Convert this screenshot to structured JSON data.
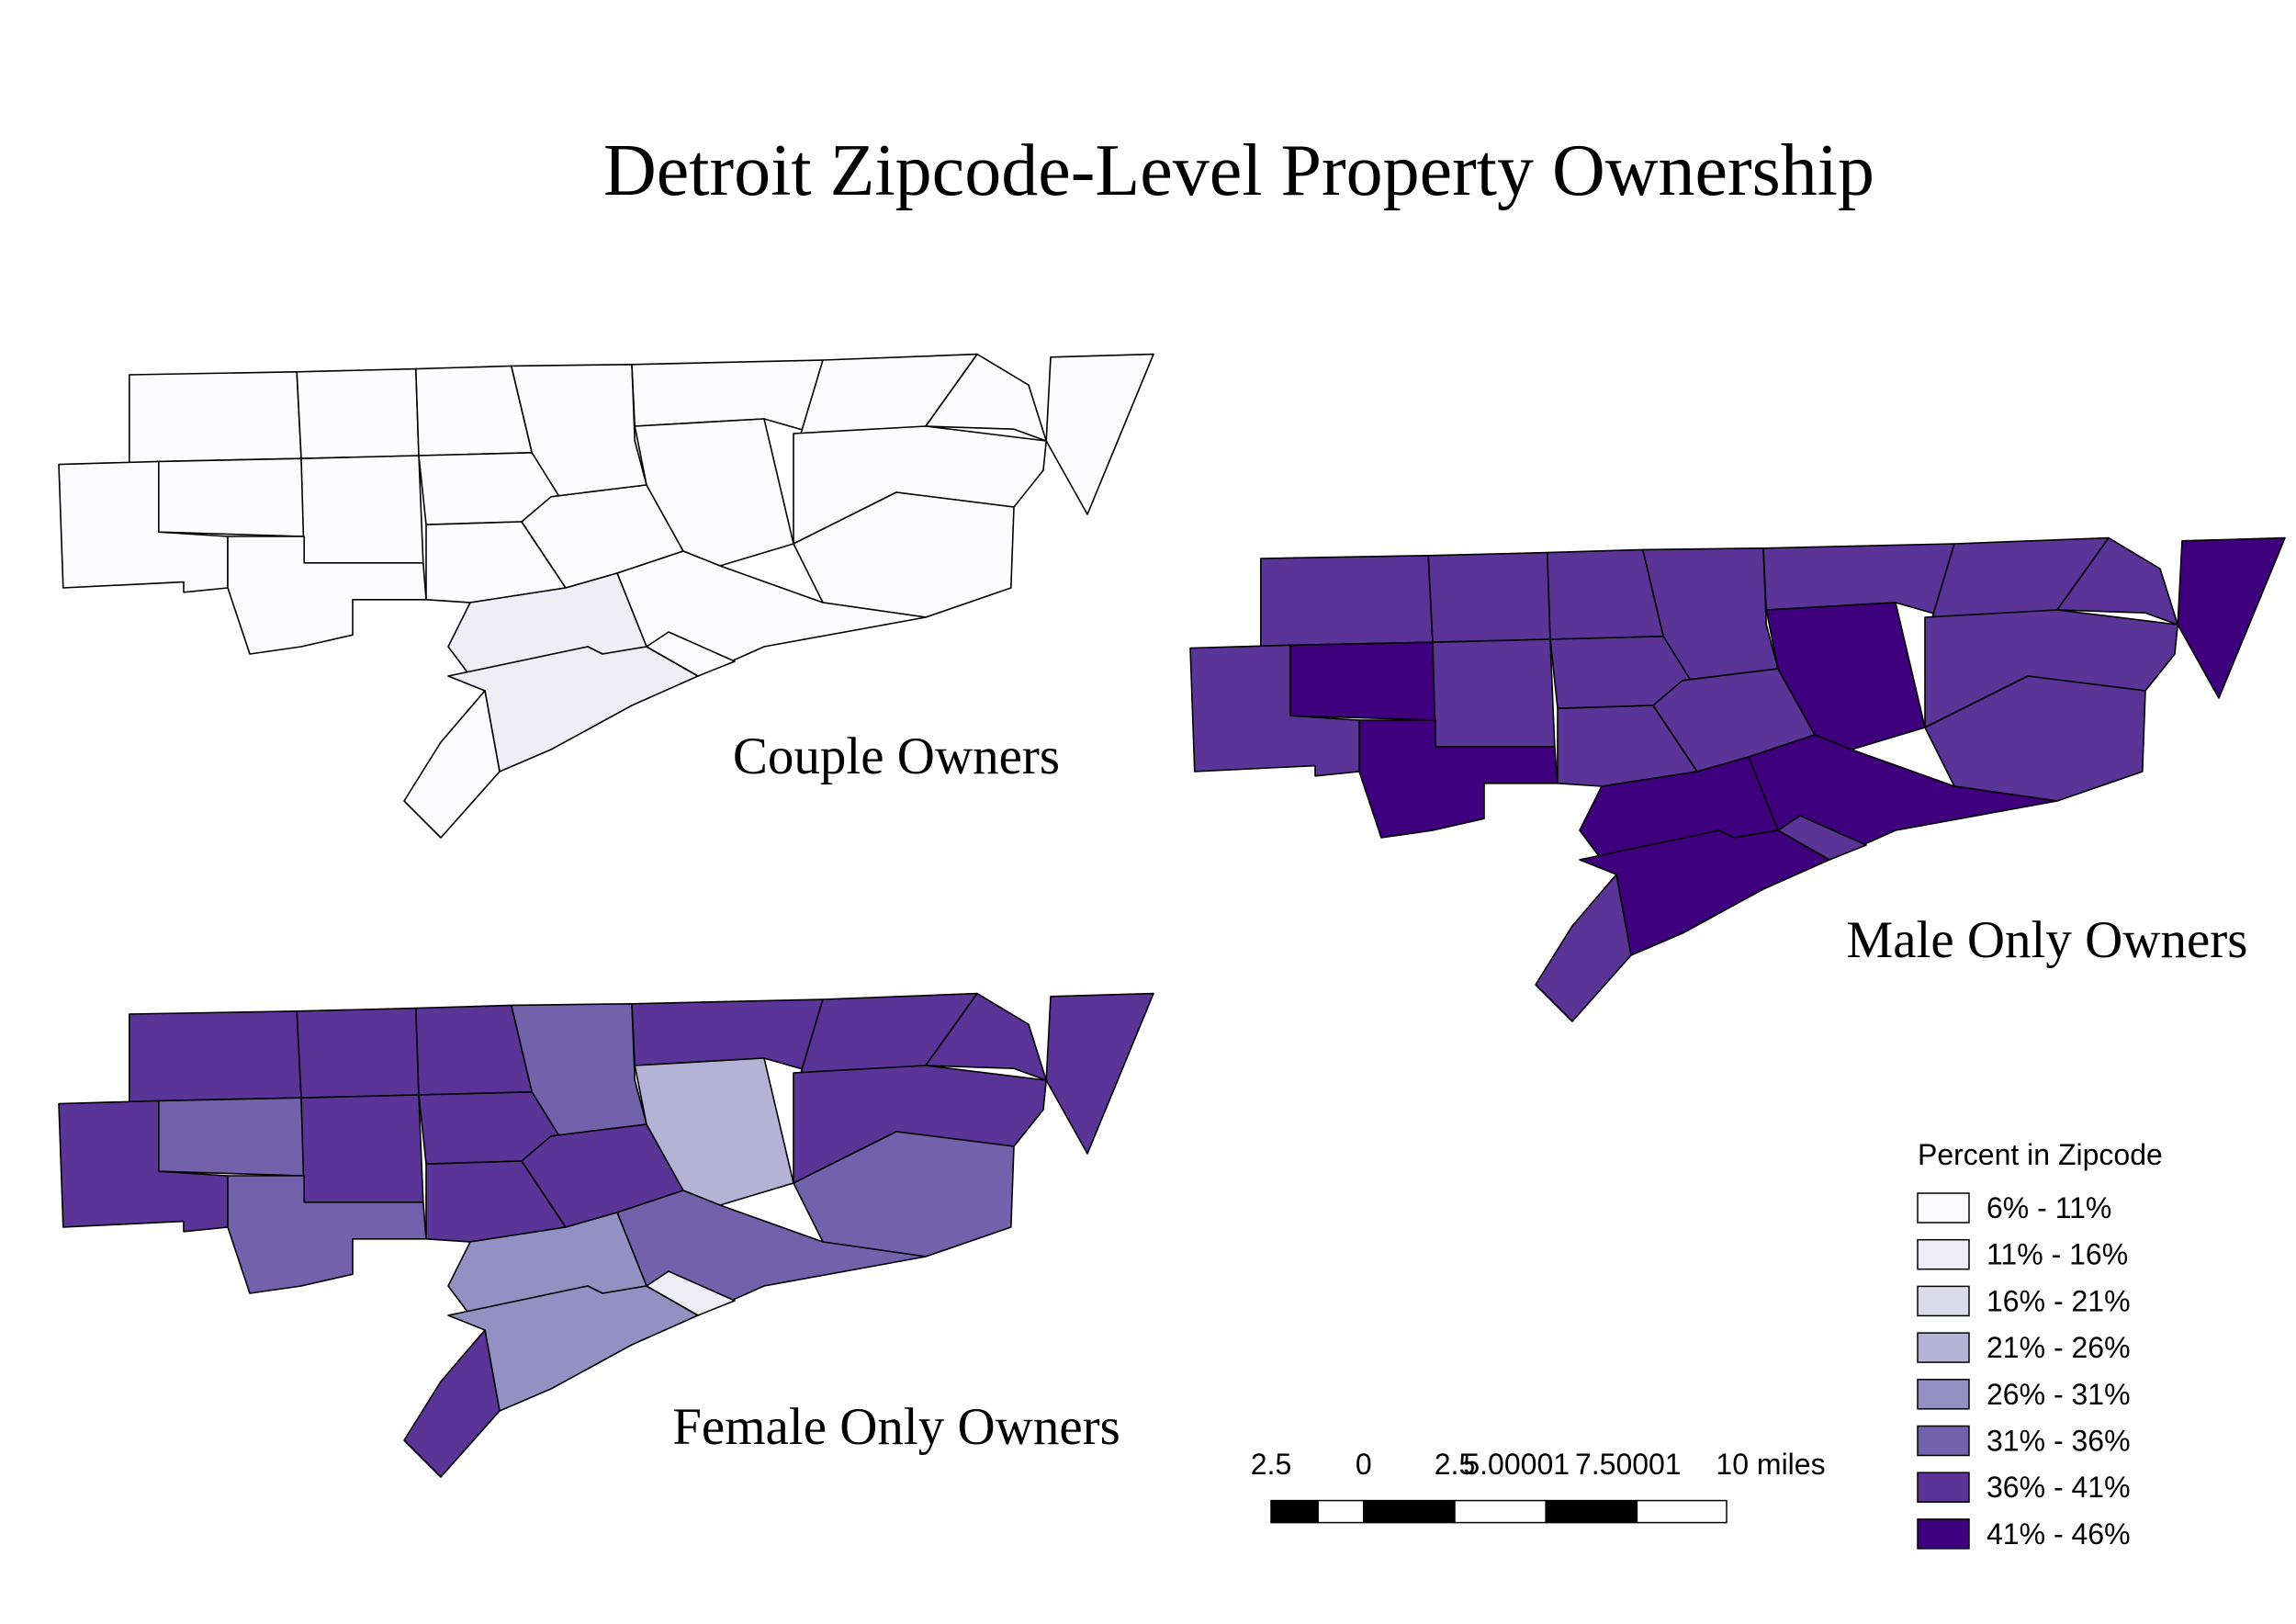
{
  "title": "Detroit  Zipcode-Level  Property  Ownership",
  "panels": [
    {
      "label": "Couple Owners"
    },
    {
      "label": "Male Only Owners"
    },
    {
      "label": "Female Only Owners"
    }
  ],
  "legend": {
    "title": "Percent in Zipcode",
    "entries": [
      {
        "label": "6% - 11%",
        "color": "#fcfbfd"
      },
      {
        "label": "11% - 16%",
        "color": "#efedf5"
      },
      {
        "label": "16% - 21%",
        "color": "#dadaeb"
      },
      {
        "label": "21% - 26%",
        "color": "#b4b3d6"
      },
      {
        "label": "26% - 31%",
        "color": "#9391c4"
      },
      {
        "label": "31% - 36%",
        "color": "#7262ac"
      },
      {
        "label": "36% - 41%",
        "color": "#5a3497"
      },
      {
        "label": "41% - 46%",
        "color": "#3f007d"
      }
    ]
  },
  "scale_bar": {
    "labels": [
      "2.5",
      "0",
      "2.5",
      "5.00001",
      "7.50001",
      "10 miles"
    ]
  }
}
